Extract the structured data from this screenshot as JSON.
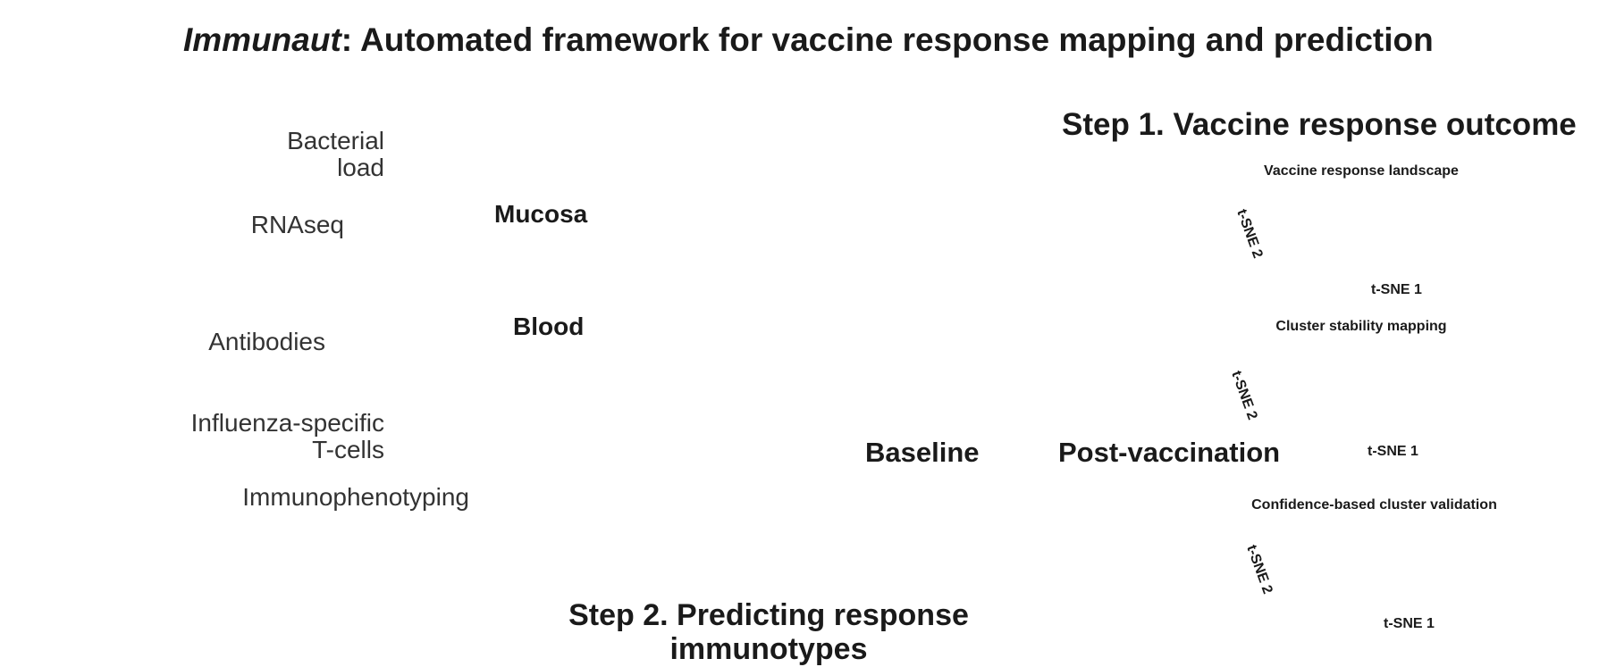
{
  "title": {
    "italic_part": "Immunaut",
    "rest": ": Automated framework for vaccine response mapping and prediction"
  },
  "logo": {
    "petal_colors": [
      "#f4b97c",
      "#8fd3c0",
      "#7c72b8",
      "#e07a2c",
      "#27a07e"
    ]
  },
  "data_types": [
    {
      "id": "bacterial-load",
      "lines": [
        "Bacterial",
        "load"
      ]
    },
    {
      "id": "rnaseq",
      "lines": [
        "RNAseq"
      ]
    },
    {
      "id": "antibodies",
      "lines": [
        "Antibodies"
      ]
    },
    {
      "id": "t-cells",
      "lines": [
        "Influenza-specific",
        "T-cells"
      ]
    },
    {
      "id": "immunophenotyping",
      "lines": [
        "Immunophenotyping"
      ]
    }
  ],
  "sites": {
    "mucosa": "Mucosa",
    "blood": "Blood"
  },
  "timeline": {
    "baseline": "Baseline",
    "post": "Post-vaccination"
  },
  "step1": {
    "title": "Step 1. Vaccine response outcome",
    "panels": [
      {
        "title": "Vaccine response landscape",
        "xlabel": "t-SNE 1",
        "ylabel": "t-SNE 2"
      },
      {
        "title": "Cluster stability mapping",
        "xlabel": "t-SNE 1",
        "ylabel": "t-SNE 2"
      },
      {
        "title": "Confidence-based cluster validation",
        "xlabel": "t-SNE 1",
        "ylabel": "t-SNE 2"
      }
    ]
  },
  "step2": {
    "title_line1": "Step 2. Predicting response",
    "title_line2": "immunotypes"
  },
  "colors": {
    "teal": "#1f9e79",
    "orange": "#e06610",
    "purple": "#7a6fba",
    "teal_light": "#8fd3bc",
    "orange_light": "#f2b88a",
    "purple_light": "#b8b1dc",
    "mucosa_drop": "#3a7bd0",
    "blood_drop": "#b01616",
    "dark": "#2a2a2a"
  }
}
